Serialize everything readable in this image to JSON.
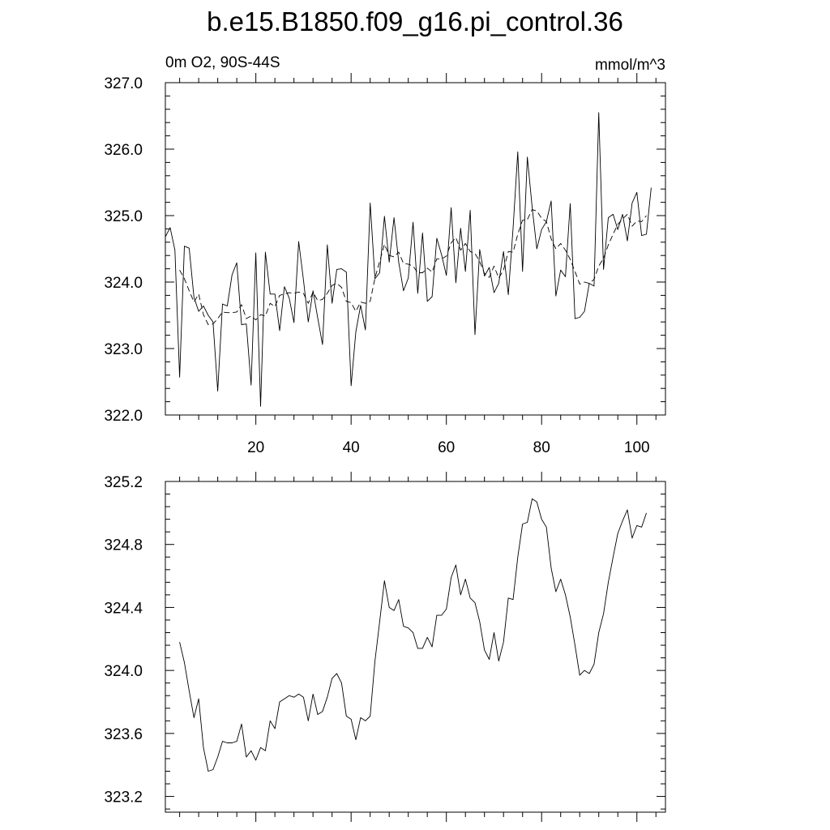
{
  "title": "b.e15.B1850.f09_g16.pi_control.36",
  "chart_data": [
    {
      "type": "line",
      "left_subtitle": "0m O2, 90S-44S",
      "right_subtitle": "mmol/m^3",
      "xlim": [
        1,
        106
      ],
      "ylim": [
        322.0,
        327.0
      ],
      "x_ticks": [
        20,
        40,
        60,
        80,
        100
      ],
      "y_ticks": [
        "322.0",
        "323.0",
        "324.0",
        "325.0",
        "326.0",
        "327.0"
      ],
      "grid": false,
      "x_start": 1,
      "series": [
        {
          "style": "solid",
          "values": [
            324.68,
            324.82,
            324.48,
            322.57,
            324.54,
            324.51,
            323.77,
            323.56,
            323.64,
            323.5,
            323.4,
            322.36,
            323.67,
            323.64,
            324.11,
            324.29,
            323.36,
            323.37,
            322.45,
            324.44,
            322.13,
            324.45,
            323.82,
            323.82,
            323.27,
            323.93,
            323.76,
            323.39,
            324.61,
            324.03,
            323.4,
            323.87,
            323.46,
            323.06,
            324.56,
            323.68,
            324.19,
            324.2,
            324.15,
            322.44,
            323.25,
            323.65,
            323.28,
            325.19,
            324.05,
            324.14,
            324.99,
            324.3,
            324.97,
            324.3,
            323.87,
            324.06,
            324.9,
            323.83,
            324.74,
            323.71,
            323.78,
            324.66,
            324.41,
            324.1,
            325.12,
            323.99,
            324.81,
            324.16,
            325.08,
            323.21,
            324.49,
            324.09,
            324.22,
            323.84,
            323.98,
            324.46,
            323.81,
            324.81,
            325.96,
            324.16,
            325.88,
            325.13,
            324.5,
            324.79,
            324.91,
            325.22,
            323.79,
            324.18,
            324.08,
            325.18,
            323.45,
            323.47,
            323.56,
            323.98,
            323.94,
            326.55,
            324.19,
            324.97,
            325.02,
            324.79,
            325.02,
            324.62,
            325.19,
            325.35,
            324.7,
            324.72,
            325.42
          ]
        },
        {
          "style": "dashed",
          "values": [
            null,
            null,
            null,
            324.18,
            324.05,
            323.87,
            323.7,
            323.82,
            323.51,
            323.36,
            323.37,
            323.45,
            323.55,
            323.54,
            323.54,
            323.55,
            323.66,
            323.45,
            323.49,
            323.43,
            323.51,
            323.49,
            323.68,
            323.63,
            323.8,
            323.82,
            323.84,
            323.83,
            323.85,
            323.83,
            323.68,
            323.85,
            323.72,
            323.74,
            323.83,
            323.95,
            323.98,
            323.92,
            323.71,
            323.69,
            323.56,
            323.7,
            323.68,
            323.71,
            324.06,
            324.31,
            324.57,
            324.4,
            324.38,
            324.45,
            324.28,
            324.27,
            324.24,
            324.14,
            324.14,
            324.21,
            324.15,
            324.35,
            324.35,
            324.39,
            324.59,
            324.67,
            324.48,
            324.58,
            324.46,
            324.43,
            324.31,
            324.13,
            324.07,
            324.24,
            324.06,
            324.18,
            324.46,
            324.45,
            324.72,
            324.93,
            324.94,
            325.09,
            325.07,
            324.96,
            324.91,
            324.65,
            324.5,
            324.58,
            324.48,
            324.34,
            324.16,
            323.97,
            324.0,
            323.98,
            324.04,
            324.24,
            324.36,
            324.56,
            324.72,
            324.87,
            324.95,
            325.02,
            324.84,
            324.92,
            324.91,
            325.0
          ]
        }
      ]
    },
    {
      "type": "line",
      "xlim": [
        1,
        106
      ],
      "ylim": [
        323.1,
        325.2
      ],
      "x_ticks": [
        20,
        40,
        60,
        80,
        100
      ],
      "y_ticks": [
        "323.2",
        "323.6",
        "324.0",
        "324.4",
        "324.8",
        "325.2"
      ],
      "grid": false,
      "x_start": 1,
      "series": [
        {
          "style": "solid",
          "values": [
            null,
            null,
            null,
            324.18,
            324.05,
            323.87,
            323.7,
            323.82,
            323.51,
            323.36,
            323.37,
            323.45,
            323.55,
            323.54,
            323.54,
            323.55,
            323.66,
            323.45,
            323.49,
            323.43,
            323.51,
            323.49,
            323.68,
            323.63,
            323.8,
            323.82,
            323.84,
            323.83,
            323.85,
            323.83,
            323.68,
            323.85,
            323.72,
            323.74,
            323.83,
            323.95,
            323.98,
            323.92,
            323.71,
            323.69,
            323.56,
            323.7,
            323.68,
            323.71,
            324.06,
            324.31,
            324.57,
            324.4,
            324.38,
            324.45,
            324.28,
            324.27,
            324.24,
            324.14,
            324.14,
            324.21,
            324.15,
            324.35,
            324.35,
            324.39,
            324.59,
            324.67,
            324.48,
            324.58,
            324.46,
            324.43,
            324.31,
            324.13,
            324.07,
            324.24,
            324.06,
            324.18,
            324.46,
            324.45,
            324.72,
            324.93,
            324.94,
            325.09,
            325.07,
            324.96,
            324.91,
            324.65,
            324.5,
            324.58,
            324.48,
            324.34,
            324.16,
            323.97,
            324.0,
            323.98,
            324.04,
            324.24,
            324.36,
            324.56,
            324.72,
            324.87,
            324.95,
            325.02,
            324.84,
            324.92,
            324.91,
            325.0
          ]
        }
      ]
    }
  ]
}
